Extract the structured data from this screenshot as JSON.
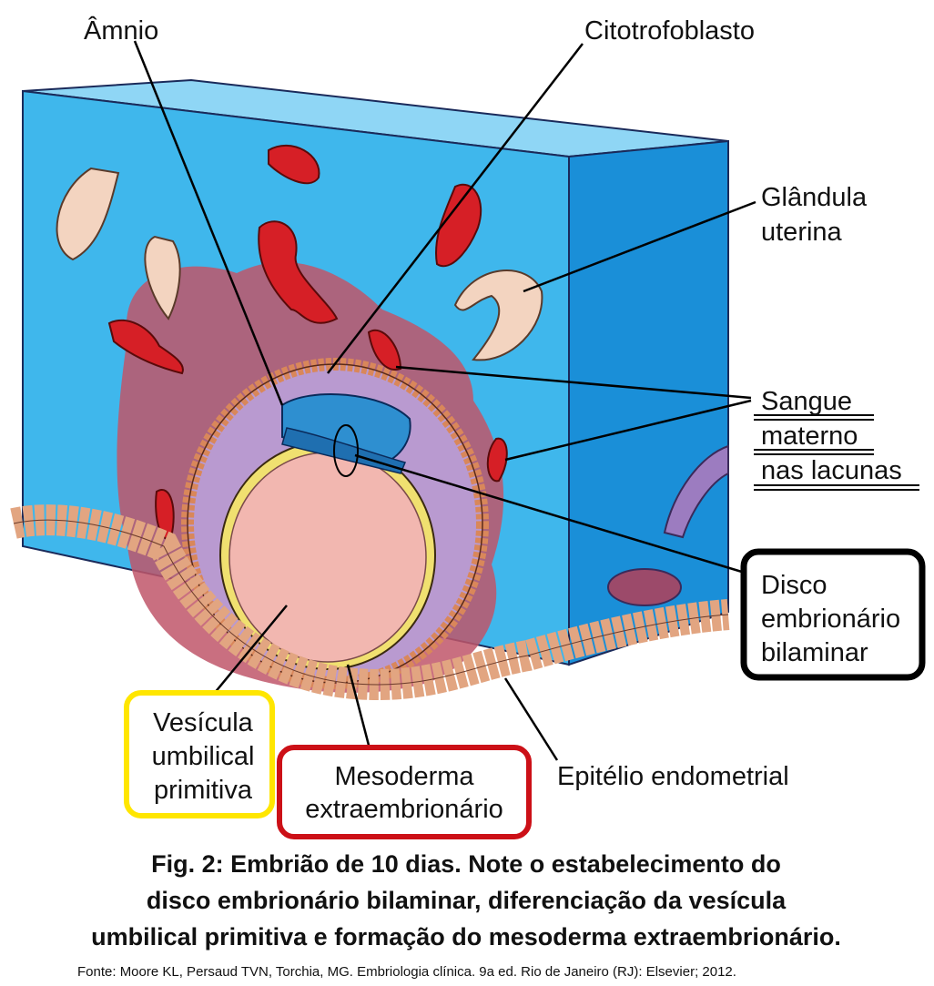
{
  "labels": [
    {
      "lines": [
        "Âmnio"
      ]
    },
    {
      "lines": [
        "Citotrofoblasto"
      ]
    },
    {
      "lines": [
        "Glândula",
        "uterina"
      ]
    },
    {
      "lines": [
        "Sangue",
        "materno",
        "nas lacunas"
      ]
    },
    {
      "lines": [
        "Disco",
        "embrionário",
        "bilaminar"
      ]
    },
    {
      "lines": [
        "Vesícula",
        "umbilical",
        "primitiva"
      ]
    },
    {
      "lines": [
        "Mesoderma",
        "extraembrionário"
      ]
    },
    {
      "lines": [
        "Epitélio endometrial"
      ]
    }
  ],
  "caption": {
    "lines": [
      "Fig. 2: Embrião de 10 dias. Note o estabelecimento do",
      "disco embrionário bilaminar, diferenciação da vesícula",
      "umbilical primitiva e formação do mesoderma extraembrionário."
    ]
  },
  "source": "Fonte: Moore KL, Persaud TVN, Torchia, MG. Embriologia clínica. 9a ed. Rio de Janeiro (RJ): Elsevier; 2012."
}
